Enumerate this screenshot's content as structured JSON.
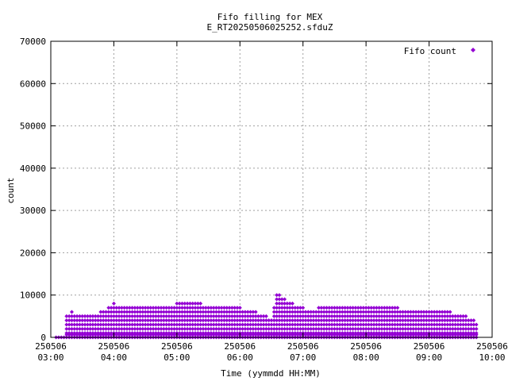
{
  "chart_data": {
    "type": "scatter",
    "title": "Fifo filling for MEX",
    "subtitle": "E_RT20250506025252.sfduZ",
    "xlabel": "Time (yymmdd HH:MM)",
    "ylabel": "count",
    "ylim": [
      0,
      70000
    ],
    "xlim": [
      "250506 03:00",
      "250506 10:00"
    ],
    "yticks": [
      "0",
      "10000",
      "20000",
      "30000",
      "40000",
      "50000",
      "60000",
      "70000"
    ],
    "xticks": [
      {
        "date": "250506",
        "time": "03:00"
      },
      {
        "date": "250506",
        "time": "04:00"
      },
      {
        "date": "250506",
        "time": "05:00"
      },
      {
        "date": "250506",
        "time": "06:00"
      },
      {
        "date": "250506",
        "time": "07:00"
      },
      {
        "date": "250506",
        "time": "08:00"
      },
      {
        "date": "250506",
        "time": "09:00"
      },
      {
        "date": "250506",
        "time": "10:00"
      }
    ],
    "grid": true,
    "legend_position": "top-right",
    "series": [
      {
        "name": "Fifo count",
        "color": "#9400d3",
        "marker": "diamond",
        "envelope": {
          "time": [
            "03:15",
            "03:20",
            "03:30",
            "03:40",
            "03:50",
            "04:00",
            "04:10",
            "04:20",
            "04:30",
            "04:40",
            "04:50",
            "05:00",
            "05:10",
            "05:20",
            "05:30",
            "05:40",
            "05:50",
            "06:00",
            "06:10",
            "06:20",
            "06:30",
            "06:35",
            "06:40",
            "06:50",
            "07:00",
            "07:10",
            "07:20",
            "07:30",
            "07:40",
            "07:50",
            "08:00",
            "08:10",
            "08:20",
            "08:30",
            "08:40",
            "08:50",
            "09:00",
            "09:10",
            "09:20",
            "09:30",
            "09:40",
            "09:45"
          ],
          "max_count": [
            5000,
            6000,
            5500,
            5000,
            6500,
            8000,
            7500,
            7800,
            7600,
            7700,
            7800,
            8000,
            8200,
            8100,
            7800,
            7500,
            7200,
            7000,
            6500,
            5500,
            4500,
            10600,
            9800,
            8000,
            7000,
            6800,
            7500,
            7800,
            7600,
            7700,
            7500,
            7400,
            7200,
            7000,
            6800,
            6500,
            6200,
            6000,
            6000,
            5800,
            4500,
            3800
          ]
        },
        "band_step": 1000,
        "note_baseline": [
          0,
          600
        ]
      }
    ]
  }
}
